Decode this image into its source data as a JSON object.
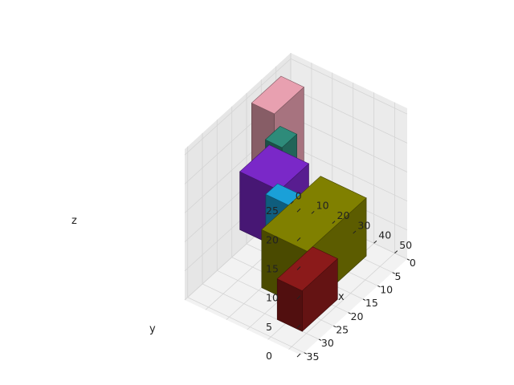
{
  "chart_data": {
    "type": "voxels",
    "title": "",
    "xlabel": "x",
    "ylabel": "y",
    "zlabel": "z",
    "x_ticks": [
      0,
      10,
      20,
      30,
      40,
      50
    ],
    "y_ticks": [
      0,
      5,
      10,
      15,
      20,
      25,
      30,
      35
    ],
    "z_ticks": [
      0,
      5,
      10,
      15,
      20,
      25
    ],
    "xlim": [
      0,
      56
    ],
    "ylim": [
      0,
      36
    ],
    "zlim": [
      0,
      26
    ],
    "grid": true,
    "objects": [
      {
        "color": "#8b1a1a",
        "x": [
          36,
          48
        ],
        "y": [
          18,
          30
        ],
        "z": [
          0,
          7
        ]
      },
      {
        "color": "#808000",
        "x": [
          20,
          42
        ],
        "y": [
          4,
          24
        ],
        "z": [
          0,
          10
        ]
      },
      {
        "color": "#2e8b7a",
        "x": [
          2,
          10
        ],
        "y": [
          5,
          10
        ],
        "z": [
          10,
          16
        ]
      },
      {
        "color": "#e8a0b0",
        "x": [
          1,
          12
        ],
        "y": [
          4,
          14
        ],
        "z": [
          10,
          24
        ]
      },
      {
        "color": "#7a28c8",
        "x": [
          1,
          20
        ],
        "y": [
          8,
          18
        ],
        "z": [
          4,
          14
        ]
      },
      {
        "color": "#1aa0d8",
        "x": [
          5,
          26
        ],
        "y": [
          8,
          12
        ],
        "z": [
          0,
          8
        ]
      }
    ]
  }
}
